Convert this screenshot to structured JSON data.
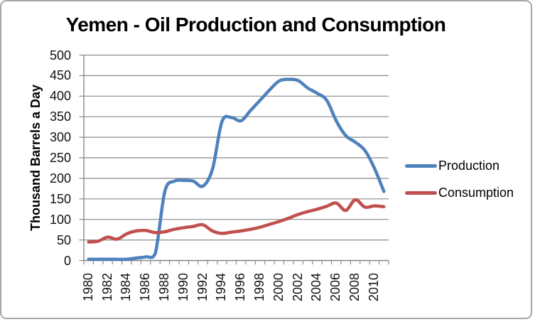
{
  "title": "Yemen - Oil Production and Consumption",
  "y_axis": {
    "label": "Thousand Barrels a Day"
  },
  "legend": {
    "position": "right"
  },
  "colors": {
    "production_line": "#4F81BD",
    "consumption_line": "#C0504D",
    "gridline": "#8a8a8a",
    "axis": "#8a8a8a",
    "frame_border": "#a6a6a6",
    "text": "#000000"
  },
  "chart_data": {
    "type": "line",
    "title": "Yemen - Oil Production and Consumption",
    "xlabel": "",
    "ylabel": "Thousand Barrels a Day",
    "ylim": [
      0,
      500
    ],
    "y_tick_step": 50,
    "x_label_step": 2,
    "grid": true,
    "legend_position": "right",
    "smoothed_lines": true,
    "x": [
      1980,
      1981,
      1982,
      1983,
      1984,
      1985,
      1986,
      1987,
      1988,
      1989,
      1990,
      1991,
      1992,
      1993,
      1994,
      1995,
      1996,
      1997,
      1998,
      1999,
      2000,
      2001,
      2002,
      2003,
      2004,
      2005,
      2006,
      2007,
      2008,
      2009,
      2010,
      2011
    ],
    "series": [
      {
        "name": "Production",
        "color": "#4F81BD",
        "values": [
          3,
          3,
          3,
          3,
          3,
          6,
          9,
          17,
          168,
          193,
          195,
          193,
          181,
          222,
          338,
          348,
          340,
          365,
          390,
          415,
          437,
          441,
          438,
          420,
          407,
          390,
          340,
          304,
          288,
          268,
          225,
          168
        ]
      },
      {
        "name": "Consumption",
        "color": "#C0504D",
        "values": [
          45,
          47,
          57,
          52,
          65,
          72,
          73,
          68,
          70,
          76,
          80,
          83,
          87,
          72,
          66,
          69,
          72,
          76,
          81,
          88,
          95,
          103,
          112,
          119,
          125,
          132,
          140,
          122,
          148,
          130,
          133,
          131
        ]
      }
    ]
  }
}
